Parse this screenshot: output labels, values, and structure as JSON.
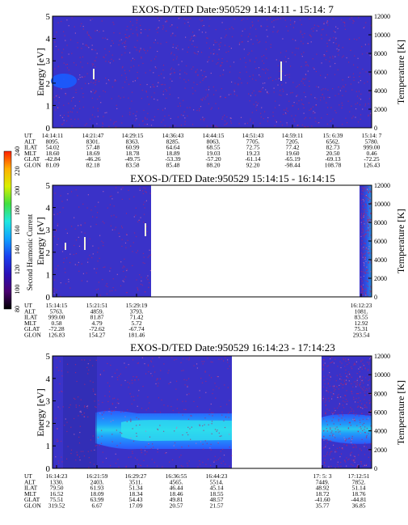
{
  "colors": {
    "background": "#3a32c8",
    "speckle_red": "#b0256b",
    "plot_border": "#000000",
    "text": "#000000"
  },
  "colorbar": {
    "label": "Second Harmonic Current",
    "ticks": [
      "80",
      "100",
      "120",
      "140",
      "160",
      "180",
      "200",
      "220",
      "240"
    ],
    "stops": [
      "#000000",
      "#4a0070",
      "#2a10b8",
      "#1a40f0",
      "#10a0ff",
      "#20e8e0",
      "#40e040",
      "#d8f000",
      "#ffb000",
      "#ff2000"
    ]
  },
  "panels": [
    {
      "title": "EXOS-D/TED  Date:950529  14:14:11 - 15:14: 7",
      "ylabel_left": "Energy [eV]",
      "ylabel_right": "Temperature [K]",
      "yticks_left": [
        "0",
        "1",
        "2",
        "3",
        "4",
        "5"
      ],
      "yticks_right": [
        "0",
        "2000",
        "4000",
        "6000",
        "8000",
        "10000",
        "12000"
      ],
      "row_labels": [
        "UT",
        "ALT",
        "ILAT",
        "MLT",
        "GLAT",
        "GLON"
      ],
      "columns": [
        [
          "14:14:11",
          "8095.",
          "54.02",
          "18.60",
          "-42.84",
          "81.09"
        ],
        [
          "14:21:47",
          "8301.",
          "57.48",
          "18.69",
          "-46.26",
          "82.18"
        ],
        [
          "14:29:15",
          "8363.",
          "60.99",
          "18.78",
          "-49.75",
          "83.58"
        ],
        [
          "14:36:43",
          "8285.",
          "64.64",
          "18.89",
          "-53.39",
          "85.48"
        ],
        [
          "14:44:15",
          "8063.",
          "68.55",
          "19.03",
          "-57.20",
          "88.20"
        ],
        [
          "14:51:43",
          "7705.",
          "72.75",
          "19.23",
          "-61.14",
          "92.20"
        ],
        [
          "14:59:11",
          "7205.",
          "77.42",
          "19.60",
          "-65.19",
          "-98.44"
        ],
        [
          "15: 6:39",
          "6562.",
          "82.73",
          "20.50",
          "-69.13",
          "108.78"
        ],
        [
          "15:14: 7",
          "5780.",
          "999.00",
          "0.46",
          "-72.25",
          "126.43"
        ]
      ]
    },
    {
      "title": "EXOS-D/TED  Date:950529  15:14:15 - 16:14:15",
      "ylabel_left": "Energy [eV]",
      "ylabel_right": "Temperature [K]",
      "yticks_left": [
        "0",
        "1",
        "2",
        "3",
        "4",
        "5"
      ],
      "yticks_right": [
        "0",
        "2000",
        "4000",
        "6000",
        "8000",
        "10000",
        "12000"
      ],
      "row_labels": [
        "UT",
        "ALT",
        "ILAT",
        "MLT",
        "GLAT",
        "GLON"
      ],
      "columns": [
        [
          "15:14:15",
          "5763.",
          "999.00",
          "0.58",
          "-72.28",
          "126.83"
        ],
        [
          "15:21:51",
          "4859.",
          "81.87",
          "4.79",
          "-72.62",
          "154.27"
        ],
        [
          "15:29:19",
          "3793.",
          "71.42",
          "5.72",
          "-67.74",
          "181.46"
        ],
        [
          "16:12:23",
          "1081.",
          "83.55",
          "12.92",
          "75.31",
          "293.54"
        ]
      ]
    },
    {
      "title": "EXOS-D/TED  Date:950529  16:14:23 - 17:14:23",
      "ylabel_left": "Energy [eV]",
      "ylabel_right": "Temperature [K]",
      "yticks_left": [
        "0",
        "1",
        "2",
        "3",
        "4",
        "5"
      ],
      "yticks_right": [
        "0",
        "2000",
        "4000",
        "6000",
        "8000",
        "10000",
        "12000"
      ],
      "row_labels": [
        "UT",
        "ALT",
        "ILAT",
        "MLT",
        "GLAT",
        "GLON"
      ],
      "columns": [
        [
          "16:14:23",
          "1330.",
          "79.50",
          "16.52",
          "75.51",
          "319.52"
        ],
        [
          "16:21:59",
          "2403.",
          "61.93",
          "18.09",
          "63.99",
          "6.67"
        ],
        [
          "16:29:27",
          "3511.",
          "51.34",
          "18.34",
          "54.43",
          "17.09"
        ],
        [
          "16:36:55",
          "4565.",
          "46.44",
          "18.46",
          "49.81",
          "20.57"
        ],
        [
          "16:44:23",
          "5514.",
          "45.14",
          "18.55",
          "48.57",
          "21.57"
        ],
        [
          "17: 5: 3",
          "7449.",
          "48.92",
          "18.72",
          "-41.60",
          "35.77"
        ],
        [
          "17:12:51",
          "7852.",
          "51.14",
          "18.76",
          "-44.81",
          "36.85"
        ]
      ]
    }
  ],
  "chart_data": [
    {
      "type": "heatmap",
      "title": "EXOS-D/TED  Date:950529  14:14:11 - 15:14: 7",
      "xlabel": "UT",
      "ylabel": "Energy [eV]",
      "ylabel_right": "Temperature [K]",
      "ylim": [
        0,
        5
      ],
      "ylim_right": [
        0,
        12000
      ],
      "x_range": [
        "14:14:11",
        "15:14: 7"
      ],
      "data_coverage": [
        [
          "14:14:11",
          "15:14: 7"
        ]
      ],
      "features": [
        {
          "description": "enhanced band near onset",
          "time": "14:14:11",
          "energy_eV": [
            1.8,
            2.4
          ]
        }
      ]
    },
    {
      "type": "heatmap",
      "title": "EXOS-D/TED  Date:950529  15:14:15 - 16:14:15",
      "xlabel": "UT",
      "ylabel": "Energy [eV]",
      "ylabel_right": "Temperature [K]",
      "ylim": [
        0,
        5
      ],
      "ylim_right": [
        0,
        12000
      ],
      "colorbar_range": [
        80,
        240
      ],
      "data_coverage": [
        [
          "15:14:15",
          "15:29:19"
        ],
        [
          "16:12:23",
          "16:14:15"
        ]
      ]
    },
    {
      "type": "heatmap",
      "title": "EXOS-D/TED  Date:950529  16:14:23 - 17:14:23",
      "xlabel": "UT",
      "ylabel": "Energy [eV]",
      "ylabel_right": "Temperature [K]",
      "ylim": [
        0,
        5
      ],
      "ylim_right": [
        0,
        12000
      ],
      "data_coverage": [
        [
          "16:14:23",
          "16:44:23"
        ],
        [
          "17: 5: 3",
          "17:14:23"
        ]
      ],
      "features": [
        {
          "description": "enhanced band",
          "time": [
            "16:21:59",
            "16:44:23"
          ],
          "energy_eV": [
            1.2,
            2.3
          ]
        },
        {
          "description": "enhanced band",
          "time": [
            "17: 5: 3",
            "17:14:23"
          ],
          "energy_eV": [
            1.6,
            2.2
          ]
        }
      ]
    }
  ]
}
